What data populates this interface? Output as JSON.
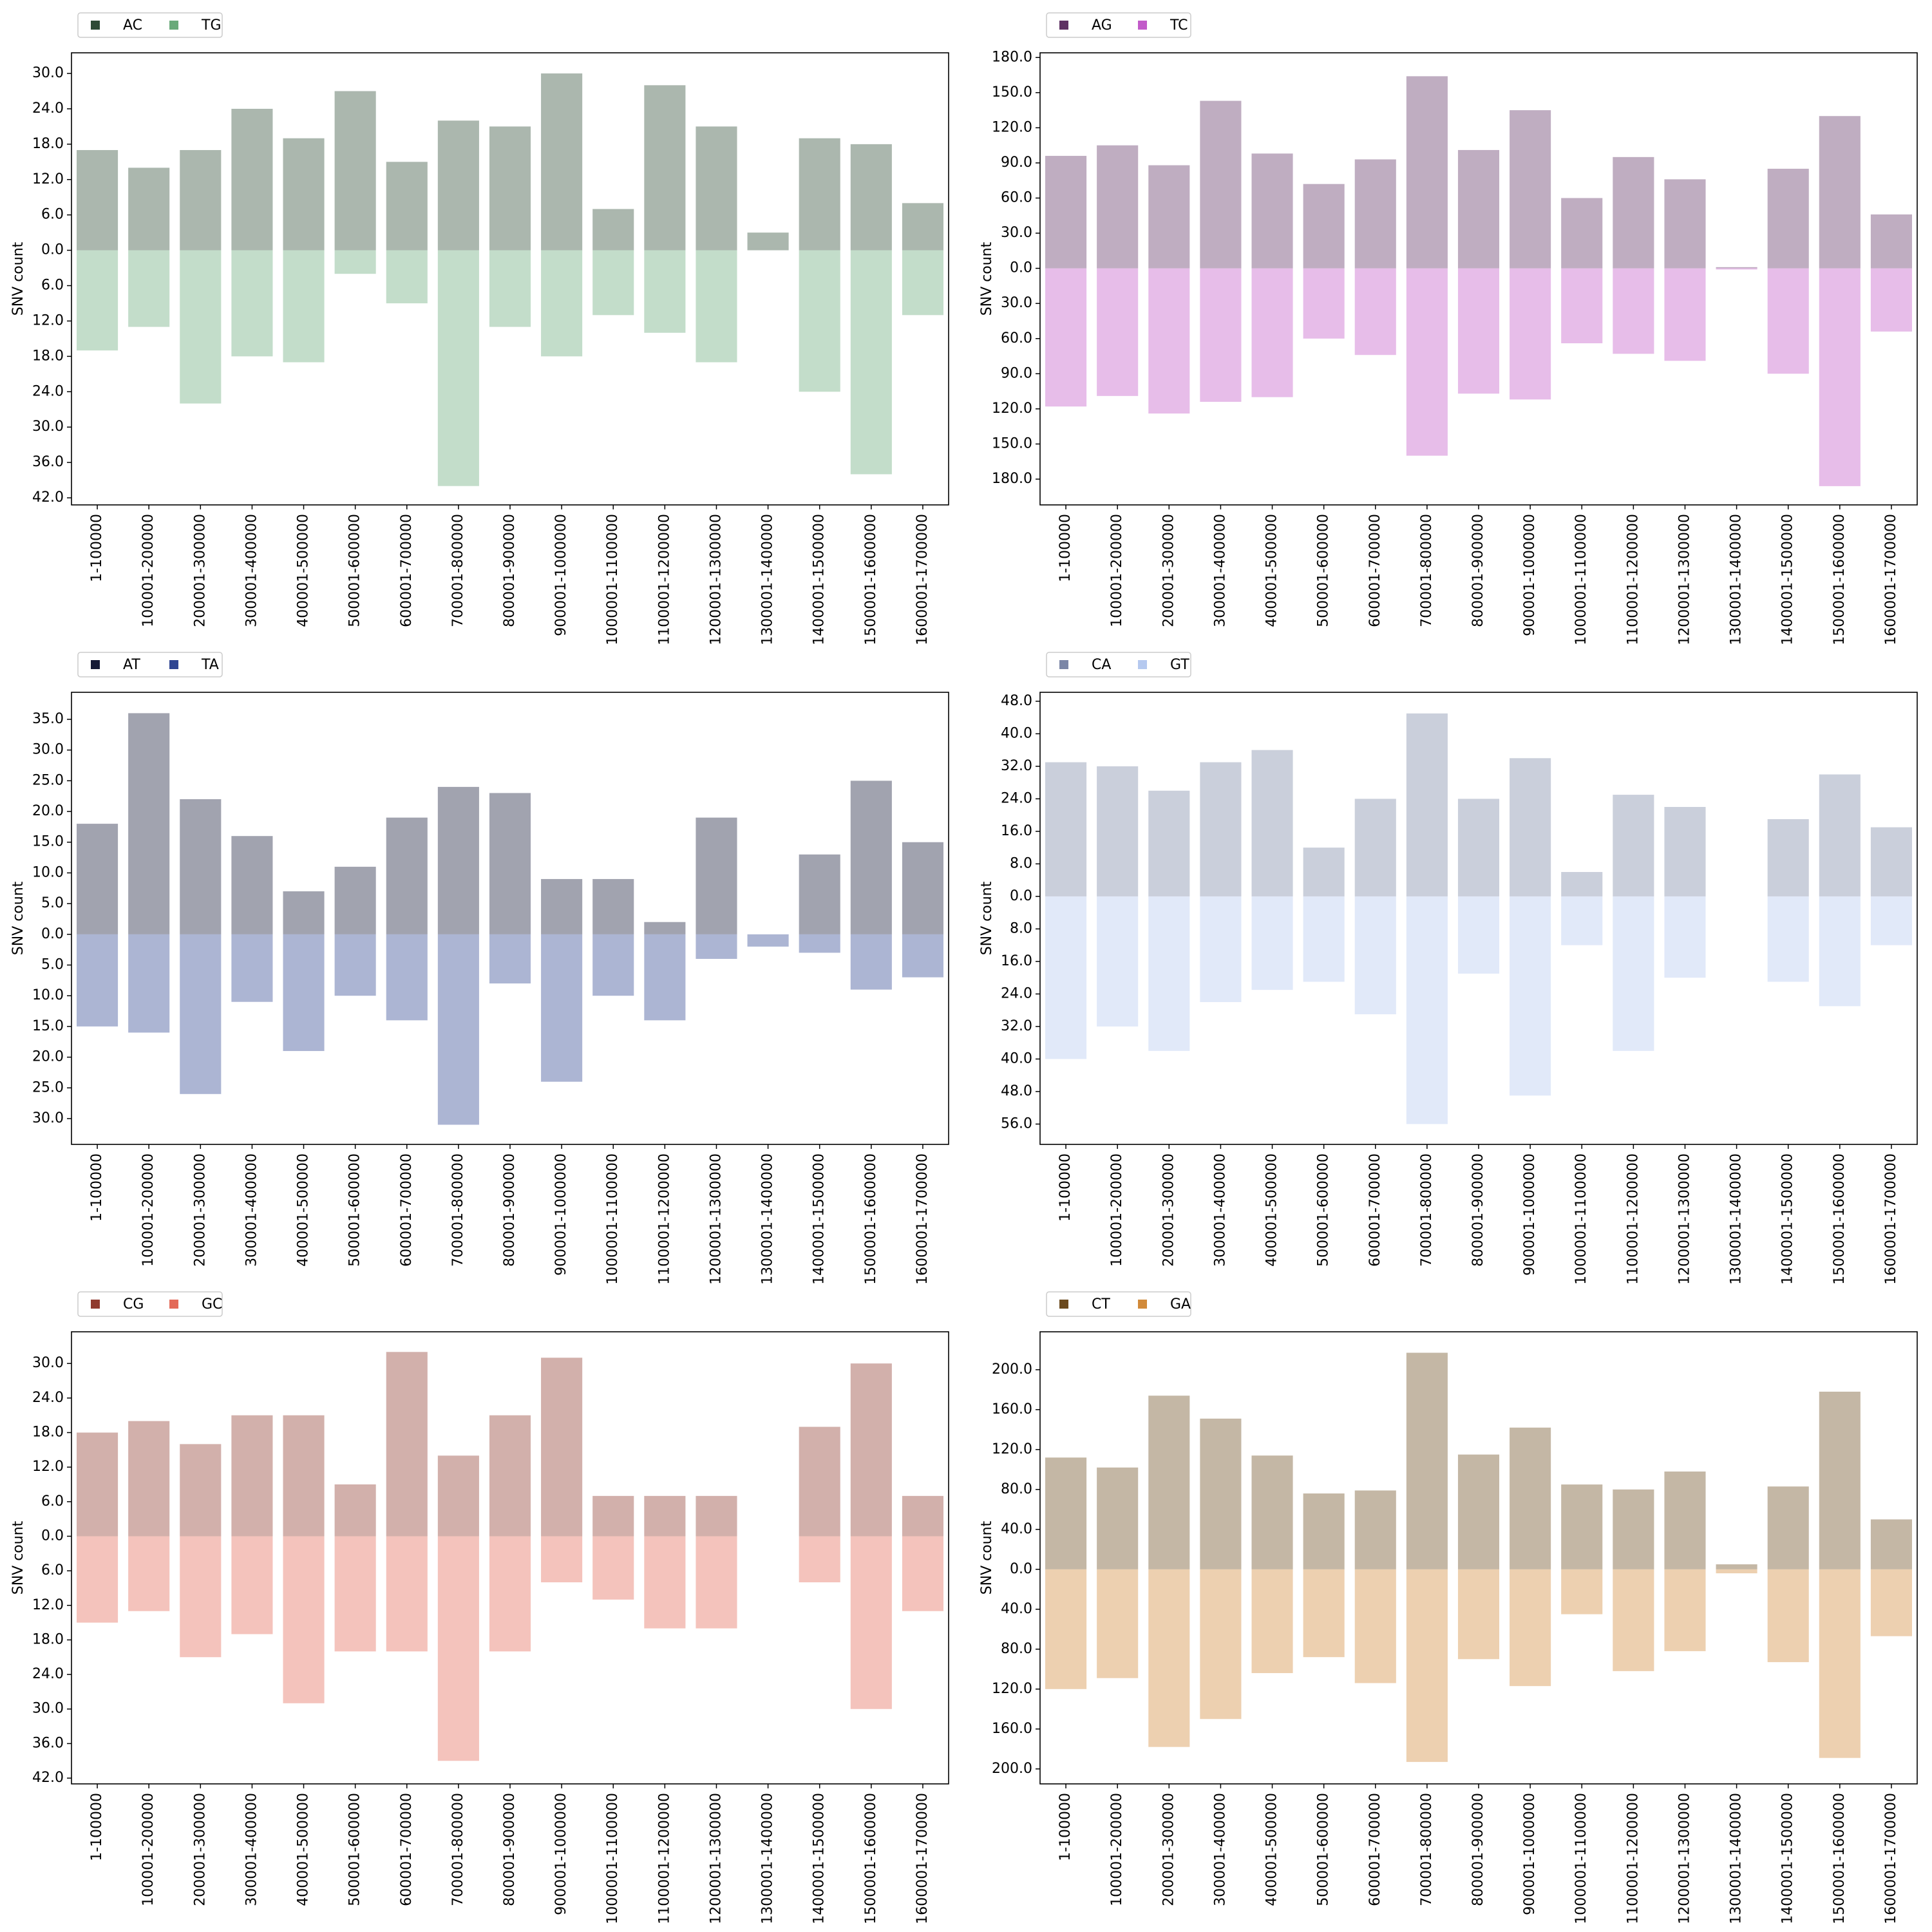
{
  "chart_data": [
    {
      "type": "bar",
      "ylabel": "SNV count",
      "categories": [
        "1-100000",
        "100001-200000",
        "200001-300000",
        "300001-400000",
        "400001-500000",
        "500001-600000",
        "600001-700000",
        "700001-800000",
        "800001-900000",
        "900001-1000000",
        "1000001-1100000",
        "1100001-1200000",
        "1200001-1300000",
        "1300001-1400000",
        "1400001-1500000",
        "1500001-1600000",
        "1600001-1700000"
      ],
      "series": [
        {
          "name": "AC",
          "color": "#2e4a35",
          "direction": "up",
          "values": [
            17,
            14,
            17,
            24,
            19,
            27,
            15,
            22,
            21,
            30,
            7,
            28,
            21,
            3,
            19,
            18,
            8
          ]
        },
        {
          "name": "TG",
          "color": "#6aaa7a",
          "direction": "down",
          "values": [
            17,
            13,
            26,
            18,
            19,
            4,
            9,
            40,
            13,
            18,
            11,
            14,
            19,
            0,
            24,
            38,
            11
          ]
        }
      ],
      "ylim_above": 33.5,
      "ylim_below": 43.2,
      "yticks": [
        {
          "value": 0,
          "label": "0.0"
        },
        {
          "value": 6,
          "label": "6.0"
        },
        {
          "value": 12,
          "label": "12.0"
        },
        {
          "value": 18,
          "label": "18.0"
        },
        {
          "value": 24,
          "label": "24.0"
        },
        {
          "value": 30,
          "label": "30.0"
        }
      ],
      "yticks_below": [
        {
          "value": 6,
          "label": "6.0"
        },
        {
          "value": 12,
          "label": "12.0"
        },
        {
          "value": 18,
          "label": "18.0"
        },
        {
          "value": 24,
          "label": "24.0"
        },
        {
          "value": 30,
          "label": "30.0"
        },
        {
          "value": 36,
          "label": "36.0"
        },
        {
          "value": 42,
          "label": "42.0"
        }
      ],
      "bar_alpha": 0.4,
      "legend": "above-left"
    },
    {
      "type": "bar",
      "ylabel": "SNV count",
      "categories": [
        "1-100000",
        "100001-200000",
        "200001-300000",
        "300001-400000",
        "400001-500000",
        "500001-600000",
        "600001-700000",
        "700001-800000",
        "800001-900000",
        "900001-1000000",
        "1000001-1100000",
        "1100001-1200000",
        "1200001-1300000",
        "1300001-1400000",
        "1400001-1500000",
        "1500001-1600000",
        "1600001-1700000"
      ],
      "series": [
        {
          "name": "AG",
          "color": "#5e3163",
          "direction": "up",
          "values": [
            96,
            105,
            88,
            143,
            98,
            72,
            93,
            164,
            101,
            135,
            60,
            95,
            76,
            1,
            85,
            130,
            46
          ]
        },
        {
          "name": "TC",
          "color": "#c25bc9",
          "direction": "down",
          "values": [
            118,
            109,
            124,
            114,
            110,
            60,
            74,
            160,
            107,
            112,
            64,
            73,
            79,
            1,
            90,
            186,
            54
          ]
        }
      ],
      "ylim_above": 184,
      "ylim_below": 202,
      "yticks": [
        {
          "value": 0,
          "label": "0.0"
        },
        {
          "value": 30,
          "label": "30.0"
        },
        {
          "value": 60,
          "label": "60.0"
        },
        {
          "value": 90,
          "label": "90.0"
        },
        {
          "value": 120,
          "label": "120.0"
        },
        {
          "value": 150,
          "label": "150.0"
        },
        {
          "value": 180,
          "label": "180.0"
        }
      ],
      "yticks_below": [
        {
          "value": 30,
          "label": "30.0"
        },
        {
          "value": 60,
          "label": "60.0"
        },
        {
          "value": 90,
          "label": "90.0"
        },
        {
          "value": 120,
          "label": "120.0"
        },
        {
          "value": 150,
          "label": "150.0"
        },
        {
          "value": 180,
          "label": "180.0"
        }
      ],
      "bar_alpha": 0.4,
      "legend": "above-left"
    },
    {
      "type": "bar",
      "ylabel": "SNV count",
      "categories": [
        "1-100000",
        "100001-200000",
        "200001-300000",
        "300001-400000",
        "400001-500000",
        "500001-600000",
        "600001-700000",
        "700001-800000",
        "800001-900000",
        "900001-1000000",
        "1000001-1100000",
        "1100001-1200000",
        "1200001-1300000",
        "1300001-1400000",
        "1400001-1500000",
        "1500001-1600000",
        "1600001-1700000"
      ],
      "series": [
        {
          "name": "AT",
          "color": "#151a36",
          "direction": "up",
          "values": [
            18,
            36,
            22,
            16,
            7,
            11,
            19,
            24,
            23,
            9,
            9,
            2,
            19,
            0,
            13,
            25,
            15
          ]
        },
        {
          "name": "TA",
          "color": "#2f4592",
          "direction": "down",
          "values": [
            15,
            16,
            26,
            11,
            19,
            10,
            14,
            31,
            8,
            24,
            10,
            14,
            4,
            2,
            3,
            9,
            7
          ]
        }
      ],
      "ylim_above": 39.4,
      "ylim_below": 34.2,
      "yticks": [
        {
          "value": 0,
          "label": "0.0"
        },
        {
          "value": 5,
          "label": "5.0"
        },
        {
          "value": 10,
          "label": "10.0"
        },
        {
          "value": 15,
          "label": "15.0"
        },
        {
          "value": 20,
          "label": "20.0"
        },
        {
          "value": 25,
          "label": "25.0"
        },
        {
          "value": 30,
          "label": "30.0"
        },
        {
          "value": 35,
          "label": "35.0"
        }
      ],
      "yticks_below": [
        {
          "value": 5,
          "label": "5.0"
        },
        {
          "value": 10,
          "label": "10.0"
        },
        {
          "value": 15,
          "label": "15.0"
        },
        {
          "value": 20,
          "label": "20.0"
        },
        {
          "value": 25,
          "label": "25.0"
        },
        {
          "value": 30,
          "label": "30.0"
        }
      ],
      "bar_alpha": 0.4,
      "legend": "above-left"
    },
    {
      "type": "bar",
      "ylabel": "SNV count",
      "categories": [
        "1-100000",
        "100001-200000",
        "200001-300000",
        "300001-400000",
        "400001-500000",
        "500001-600000",
        "600001-700000",
        "700001-800000",
        "800001-900000",
        "900001-1000000",
        "1000001-1100000",
        "1100001-1200000",
        "1200001-1300000",
        "1300001-1400000",
        "1400001-1500000",
        "1500001-1600000",
        "1600001-1700000"
      ],
      "series": [
        {
          "name": "CA",
          "color": "#7b86a6",
          "direction": "up",
          "values": [
            33,
            32,
            26,
            33,
            36,
            12,
            24,
            45,
            24,
            34,
            6,
            25,
            22,
            0,
            19,
            30,
            17
          ]
        },
        {
          "name": "GT",
          "color": "#b5c9ef",
          "direction": "down",
          "values": [
            40,
            32,
            38,
            26,
            23,
            21,
            29,
            56,
            19,
            49,
            12,
            38,
            20,
            0,
            21,
            27,
            12
          ]
        }
      ],
      "ylim_above": 50.2,
      "ylim_below": 61,
      "yticks": [
        {
          "value": 0,
          "label": "0.0"
        },
        {
          "value": 8,
          "label": "8.0"
        },
        {
          "value": 16,
          "label": "16.0"
        },
        {
          "value": 24,
          "label": "24.0"
        },
        {
          "value": 32,
          "label": "32.0"
        },
        {
          "value": 40,
          "label": "40.0"
        },
        {
          "value": 48,
          "label": "48.0"
        }
      ],
      "yticks_below": [
        {
          "value": 8,
          "label": "8.0"
        },
        {
          "value": 16,
          "label": "16.0"
        },
        {
          "value": 24,
          "label": "24.0"
        },
        {
          "value": 32,
          "label": "32.0"
        },
        {
          "value": 40,
          "label": "40.0"
        },
        {
          "value": 48,
          "label": "48.0"
        },
        {
          "value": 56,
          "label": "56.0"
        }
      ],
      "bar_alpha": 0.4,
      "legend": "above-left"
    },
    {
      "type": "bar",
      "ylabel": "SNV count",
      "categories": [
        "1-100000",
        "100001-200000",
        "200001-300000",
        "300001-400000",
        "400001-500000",
        "500001-600000",
        "600001-700000",
        "700001-800000",
        "800001-900000",
        "900001-1000000",
        "1000001-1100000",
        "1100001-1200000",
        "1200001-1300000",
        "1300001-1400000",
        "1400001-1500000",
        "1500001-1600000",
        "1600001-1700000"
      ],
      "series": [
        {
          "name": "CG",
          "color": "#8f3a2e",
          "direction": "up",
          "values": [
            18,
            20,
            16,
            21,
            21,
            9,
            32,
            14,
            21,
            31,
            7,
            7,
            7,
            0,
            19,
            30,
            7
          ]
        },
        {
          "name": "GC",
          "color": "#e36a58",
          "direction": "down",
          "values": [
            15,
            13,
            21,
            17,
            29,
            20,
            20,
            39,
            20,
            8,
            11,
            16,
            16,
            0,
            8,
            30,
            13
          ]
        }
      ],
      "ylim_above": 35.5,
      "ylim_below": 43,
      "yticks": [
        {
          "value": 0,
          "label": "0.0"
        },
        {
          "value": 6,
          "label": "6.0"
        },
        {
          "value": 12,
          "label": "12.0"
        },
        {
          "value": 18,
          "label": "18.0"
        },
        {
          "value": 24,
          "label": "24.0"
        },
        {
          "value": 30,
          "label": "30.0"
        }
      ],
      "yticks_below": [
        {
          "value": 6,
          "label": "6.0"
        },
        {
          "value": 12,
          "label": "12.0"
        },
        {
          "value": 18,
          "label": "18.0"
        },
        {
          "value": 24,
          "label": "24.0"
        },
        {
          "value": 30,
          "label": "30.0"
        },
        {
          "value": 36,
          "label": "36.0"
        },
        {
          "value": 42,
          "label": "42.0"
        }
      ],
      "bar_alpha": 0.4,
      "legend": "above-left"
    },
    {
      "type": "bar",
      "ylabel": "SNV count",
      "categories": [
        "1-100000",
        "100001-200000",
        "200001-300000",
        "300001-400000",
        "400001-500000",
        "500001-600000",
        "600001-700000",
        "700001-800000",
        "800001-900000",
        "900001-1000000",
        "1000001-1100000",
        "1100001-1200000",
        "1200001-1300000",
        "1300001-1400000",
        "1400001-1500000",
        "1500001-1600000",
        "1600001-1700000"
      ],
      "series": [
        {
          "name": "CT",
          "color": "#6b4a1e",
          "direction": "up",
          "values": [
            112,
            102,
            174,
            151,
            114,
            76,
            79,
            217,
            115,
            142,
            85,
            80,
            98,
            5,
            83,
            178,
            50
          ]
        },
        {
          "name": "GA",
          "color": "#d18a3a",
          "direction": "down",
          "values": [
            120,
            109,
            178,
            150,
            104,
            88,
            114,
            193,
            90,
            117,
            45,
            102,
            82,
            4,
            93,
            189,
            67
          ]
        }
      ],
      "ylim_above": 238,
      "ylim_below": 215,
      "yticks": [
        {
          "value": 0,
          "label": "0.0"
        },
        {
          "value": 40,
          "label": "40.0"
        },
        {
          "value": 80,
          "label": "80.0"
        },
        {
          "value": 120,
          "label": "120.0"
        },
        {
          "value": 160,
          "label": "160.0"
        },
        {
          "value": 200,
          "label": "200.0"
        }
      ],
      "yticks_below": [
        {
          "value": 40,
          "label": "40.0"
        },
        {
          "value": 80,
          "label": "80.0"
        },
        {
          "value": 120,
          "label": "120.0"
        },
        {
          "value": 160,
          "label": "160.0"
        },
        {
          "value": 200,
          "label": "200.0"
        }
      ],
      "bar_alpha": 0.4,
      "legend": "above-left"
    }
  ]
}
